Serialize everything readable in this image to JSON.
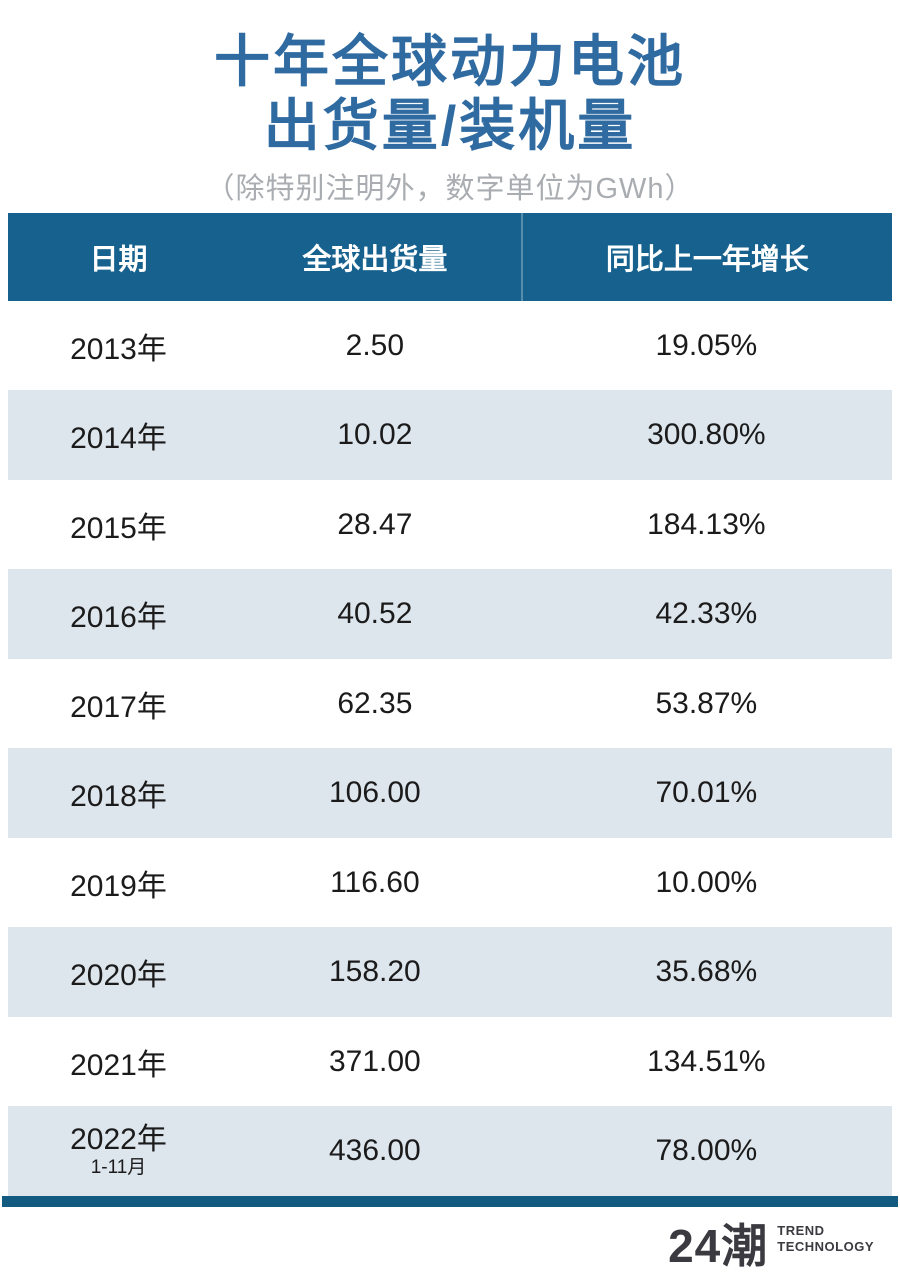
{
  "title": {
    "line1": "十年全球动力电池",
    "line2": "出货量/装机量",
    "subtitle": "（除特别注明外，数字单位为GWh）"
  },
  "table": {
    "columns": [
      "日期",
      "全球出货量",
      "同比上一年增长"
    ],
    "rows": [
      {
        "date": "2013年",
        "shipment": "2.50",
        "growth": "19.05%"
      },
      {
        "date": "2014年",
        "shipment": "10.02",
        "growth": "300.80%"
      },
      {
        "date": "2015年",
        "shipment": "28.47",
        "growth": "184.13%"
      },
      {
        "date": "2016年",
        "shipment": "40.52",
        "growth": "42.33%"
      },
      {
        "date": "2017年",
        "shipment": "62.35",
        "growth": "53.87%"
      },
      {
        "date": "2018年",
        "shipment": "106.00",
        "growth": "70.01%"
      },
      {
        "date": "2019年",
        "shipment": "116.60",
        "growth": "10.00%"
      },
      {
        "date": "2020年",
        "shipment": "158.20",
        "growth": "35.68%"
      },
      {
        "date": "2021年",
        "shipment": "371.00",
        "growth": "134.51%"
      },
      {
        "date": "2022年",
        "date_note": "1-11月",
        "shipment": "436.00",
        "growth": "78.00%"
      }
    ]
  },
  "footer": {
    "logo_text": "24潮",
    "tagline_line1": "TREND",
    "tagline_line2": "TECHNOLOGY"
  },
  "colors": {
    "title_blue": "#2f6aa1",
    "header_bg": "#16618e",
    "stripe": "#dde5ed",
    "bottom_bar": "#135a81",
    "subtitle_gray": "#a9adb2",
    "logo_gray": "#3a3a40"
  },
  "chart_data": {
    "type": "table",
    "title": "十年全球动力电池出货量/装机量",
    "subtitle": "（除特别注明外，数字单位为GWh）",
    "unit": "GWh",
    "columns": [
      "日期",
      "全球出货量",
      "同比上一年增长"
    ],
    "categories": [
      "2013年",
      "2014年",
      "2015年",
      "2016年",
      "2017年",
      "2018年",
      "2019年",
      "2020年",
      "2021年",
      "2022年 1-11月"
    ],
    "series": [
      {
        "name": "全球出货量 (GWh)",
        "values": [
          2.5,
          10.02,
          28.47,
          40.52,
          62.35,
          106.0,
          116.6,
          158.2,
          371.0,
          436.0
        ]
      },
      {
        "name": "同比上一年增长 (%)",
        "values": [
          19.05,
          300.8,
          184.13,
          42.33,
          53.87,
          70.01,
          10.0,
          35.68,
          134.51,
          78.0
        ]
      }
    ]
  }
}
